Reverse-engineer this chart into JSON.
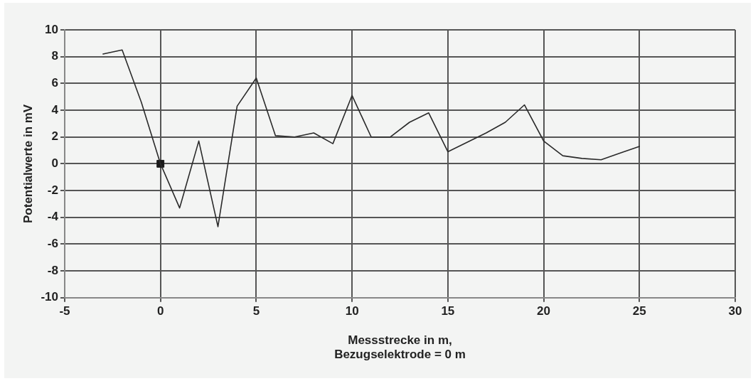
{
  "chart_data": {
    "type": "line",
    "xlabel": "Messstrecke in m,\nBezugselektrode = 0 m",
    "ylabel": "Potentialwerte in mV",
    "xlim": [
      -5,
      30
    ],
    "xticks": [
      -5,
      0,
      5,
      10,
      15,
      20,
      25,
      30
    ],
    "ylim": [
      -10,
      10
    ],
    "yticks": [
      -10,
      -8,
      -6,
      -4,
      -2,
      0,
      2,
      4,
      6,
      8,
      10
    ],
    "grid": true,
    "marker": "none",
    "line_style": "solid",
    "series": [
      {
        "type": "line",
        "color": "#2a2a2a",
        "x": [
          -3,
          -2,
          -1,
          0,
          1,
          2,
          3,
          4,
          5,
          6,
          7,
          8,
          9,
          10,
          11,
          12,
          13,
          14,
          15,
          16,
          17,
          18,
          19,
          20,
          21,
          22,
          23,
          24,
          25
        ],
        "values": [
          8.2,
          8.5,
          4.6,
          0,
          -3.3,
          1.7,
          -4.7,
          4.3,
          6.4,
          2.1,
          2.0,
          2.3,
          1.5,
          5.1,
          2.0,
          2.0,
          3.1,
          3.8,
          0.9,
          1.6,
          2.3,
          3.1,
          4.4,
          1.7,
          0.6,
          0.4,
          0.3,
          0.8,
          1.3
        ]
      },
      {
        "type": "scatter",
        "marker": "square",
        "color": "#1a1a1a",
        "x": [
          0
        ],
        "values": [
          0
        ]
      }
    ]
  }
}
